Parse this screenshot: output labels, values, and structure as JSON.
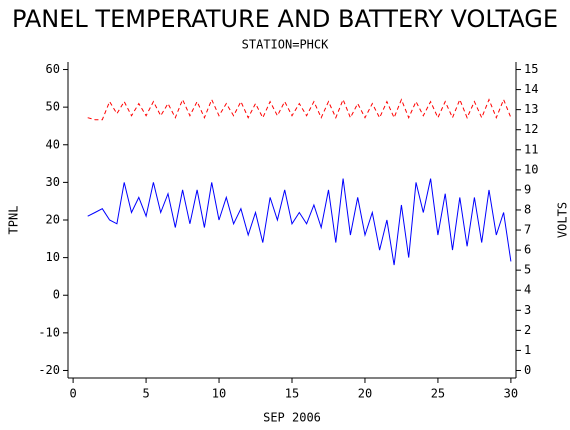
{
  "chart_data": {
    "type": "line",
    "title": "PANEL TEMPERATURE AND BATTERY VOLTAGE",
    "subtitle": "STATION=PHCK",
    "xlabel": "SEP 2006",
    "ylabel": "TPNL",
    "y2label": "VOLTS",
    "x": [
      1,
      1.5,
      2,
      2.5,
      3,
      3.5,
      4,
      4.5,
      5,
      5.5,
      6,
      6.5,
      7,
      7.5,
      8,
      8.5,
      9,
      9.5,
      10,
      10.5,
      11,
      11.5,
      12,
      12.5,
      13,
      13.5,
      14,
      14.5,
      15,
      15.5,
      16,
      16.5,
      17,
      17.5,
      18,
      18.5,
      19,
      19.5,
      20,
      20.5,
      21,
      21.5,
      22,
      22.5,
      23,
      23.5,
      24,
      24.5,
      25,
      25.5,
      26,
      26.5,
      27,
      27.5,
      28,
      28.5,
      29,
      29.5,
      30
    ],
    "series": [
      {
        "color": "#0000ff",
        "dashed": false,
        "values": [
          21,
          22,
          23,
          20,
          19,
          30,
          22,
          26,
          21,
          30,
          22,
          27,
          18,
          28,
          19,
          28,
          18,
          30,
          20,
          26,
          19,
          23,
          16,
          22,
          14,
          26,
          20,
          28,
          19,
          22,
          19,
          24,
          18,
          28,
          14,
          31,
          16,
          26,
          16,
          22,
          12,
          20,
          8,
          24,
          10,
          30,
          22,
          31,
          16,
          27,
          12,
          26,
          13,
          26,
          14,
          28,
          16,
          22,
          9
        ]
      },
      {
        "color": "#ff0000",
        "dashed": true,
        "axis": "y2",
        "values": [
          12.6,
          12.5,
          12.5,
          13.4,
          12.8,
          13.4,
          12.7,
          13.3,
          12.7,
          13.4,
          12.7,
          13.3,
          12.6,
          13.5,
          12.7,
          13.4,
          12.6,
          13.5,
          12.7,
          13.3,
          12.7,
          13.4,
          12.6,
          13.3,
          12.6,
          13.4,
          12.7,
          13.4,
          12.7,
          13.3,
          12.7,
          13.4,
          12.6,
          13.4,
          12.6,
          13.5,
          12.6,
          13.3,
          12.6,
          13.3,
          12.6,
          13.4,
          12.6,
          13.5,
          12.6,
          13.4,
          12.7,
          13.4,
          12.6,
          13.4,
          12.6,
          13.5,
          12.6,
          13.4,
          12.6,
          13.5,
          12.6,
          13.5,
          12.6
        ]
      }
    ],
    "xlim": [
      -0.35,
      30.35
    ],
    "xticks": [
      0,
      5,
      10,
      15,
      20,
      25,
      30
    ],
    "ylim": [
      -22,
      62
    ],
    "yticks": [
      -20,
      -10,
      0,
      10,
      20,
      30,
      40,
      50,
      60
    ],
    "y2lim": [
      -0.375,
      15.375
    ],
    "y2ticks": [
      0,
      1,
      2,
      3,
      4,
      5,
      6,
      7,
      8,
      9,
      10,
      11,
      12,
      13,
      14,
      15
    ]
  }
}
